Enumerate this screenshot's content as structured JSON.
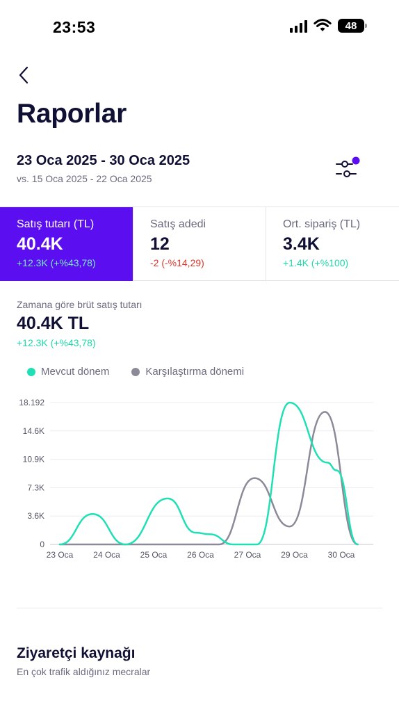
{
  "status_bar": {
    "time": "23:53",
    "battery": "48",
    "icons": [
      "cellular-signal-icon",
      "wifi-icon",
      "battery-icon"
    ]
  },
  "header": {
    "back_icon": "chevron-left-icon",
    "title": "Raporlar"
  },
  "date_filter": {
    "range": "23 Oca 2025 - 30 Oca 2025",
    "compare": "vs. 15 Oca 2025 - 22 Oca 2025",
    "filter_icon": "sliders-icon"
  },
  "metrics": [
    {
      "label": "Satış tutarı (TL)",
      "value": "40.4K",
      "change": "+12.3K (+%43,78)",
      "trend": "up",
      "active": true
    },
    {
      "label": "Satış adedi",
      "value": "12",
      "change": "-2 (-%14,29)",
      "trend": "down",
      "active": false
    },
    {
      "label": "Ort. sipariş (TL)",
      "value": "3.4K",
      "change": "+1.4K (+%100)",
      "trend": "up",
      "active": false
    }
  ],
  "chart_section": {
    "label": "Zamana göre brüt satış tutarı",
    "total": "40.4K TL",
    "change": "+12.3K (+%43,78)"
  },
  "colors": {
    "accent": "#5b0ef0",
    "current": "#1fe0b4",
    "comparison": "#8a8a98",
    "positive": "#1fd8a8",
    "negative": "#e0342a"
  },
  "chart_data": {
    "type": "line",
    "x": [
      "23 Oca",
      "24 Oca",
      "25 Oca",
      "26 Oca",
      "27 Oca",
      "29 Oca",
      "30 Oca"
    ],
    "y_ticks": [
      "0",
      "3.6K",
      "7.3K",
      "10.9K",
      "14.6K",
      "18.192"
    ],
    "ylim": [
      0,
      18192
    ],
    "grid": true,
    "legend_position": "top-left",
    "series": [
      {
        "name": "Mevcut dönem",
        "color": "#1fe0b4",
        "points": [
          [
            0,
            0
          ],
          [
            0.7,
            3900
          ],
          [
            1.4,
            0
          ],
          [
            2.3,
            5900
          ],
          [
            2.9,
            1500
          ],
          [
            3.2,
            1300
          ],
          [
            3.7,
            0
          ],
          [
            4.2,
            0
          ],
          [
            4.9,
            18192
          ],
          [
            5.7,
            10500
          ],
          [
            5.9,
            9500
          ],
          [
            6.35,
            0
          ]
        ]
      },
      {
        "name": "Karşılaştırma dönemi",
        "color": "#8a8a98",
        "points": [
          [
            0,
            0
          ],
          [
            3.4,
            0
          ],
          [
            4.15,
            8500
          ],
          [
            4.9,
            2300
          ],
          [
            5.65,
            17000
          ],
          [
            6.35,
            0
          ]
        ]
      }
    ]
  },
  "visitor_section": {
    "title": "Ziyaretçi kaynağı",
    "subtitle": "En çok trafik aldığınız mecralar"
  }
}
